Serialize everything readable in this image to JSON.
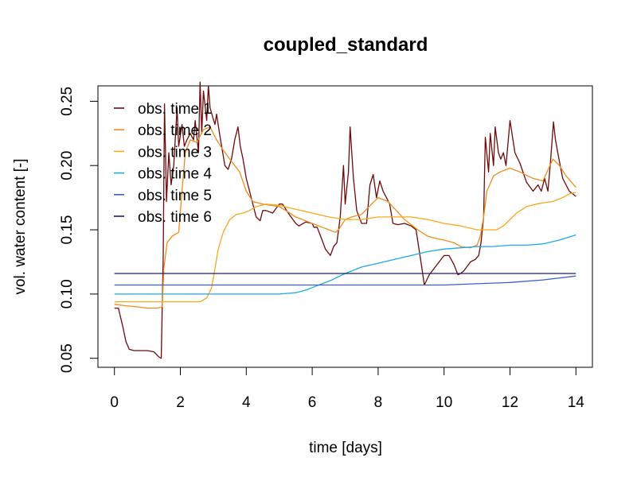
{
  "chart_data": {
    "type": "line",
    "title": "coupled_standard",
    "xlabel": "time [days]",
    "ylabel": "vol. water content [-]",
    "xlim": [
      -0.5,
      14.5
    ],
    "ylim": [
      0.043,
      0.262
    ],
    "x_ticks": [
      0,
      2,
      4,
      6,
      8,
      10,
      12,
      14
    ],
    "x_tick_labels": [
      "0",
      "2",
      "4",
      "6",
      "8",
      "10",
      "12",
      "14"
    ],
    "y_ticks": [
      0.05,
      0.1,
      0.15,
      0.2,
      0.25
    ],
    "y_tick_labels": [
      "0.05",
      "0.10",
      "0.15",
      "0.20",
      "0.25"
    ],
    "grid": false,
    "legend_position": "top-left",
    "series": [
      {
        "name": "obs. time  1",
        "color": "#6e0a0a",
        "x": [
          0,
          0.12,
          0.25,
          0.35,
          0.45,
          0.6,
          0.8,
          1.0,
          1.2,
          1.35,
          1.42,
          1.48,
          1.52,
          1.58,
          1.65,
          1.72,
          1.8,
          1.9,
          1.95,
          2.05,
          2.12,
          2.2,
          2.3,
          2.4,
          2.45,
          2.55,
          2.6,
          2.65,
          2.7,
          2.8,
          2.85,
          2.9,
          3.0,
          3.05,
          3.1,
          3.2,
          3.35,
          3.45,
          3.55,
          3.65,
          3.75,
          3.82,
          3.9,
          4.0,
          4.15,
          4.3,
          4.42,
          4.5,
          4.6,
          4.8,
          5.0,
          5.1,
          5.3,
          5.5,
          5.6,
          5.8,
          6.0,
          6.05,
          6.15,
          6.3,
          6.4,
          6.55,
          6.65,
          6.75,
          6.85,
          6.95,
          7.0,
          7.1,
          7.15,
          7.25,
          7.35,
          7.5,
          7.65,
          7.75,
          7.85,
          7.95,
          8.05,
          8.15,
          8.25,
          8.35,
          8.45,
          8.6,
          8.8,
          9.0,
          9.15,
          9.3,
          9.4,
          9.55,
          9.7,
          9.85,
          10.0,
          10.15,
          10.3,
          10.42,
          10.5,
          10.6,
          10.8,
          10.95,
          11.05,
          11.12,
          11.2,
          11.25,
          11.35,
          11.4,
          11.5,
          11.55,
          11.65,
          11.72,
          11.8,
          11.88,
          12.0,
          12.15,
          12.3,
          12.5,
          12.7,
          12.85,
          12.95,
          13.05,
          13.15,
          13.22,
          13.32,
          13.38,
          13.45,
          13.6,
          13.8,
          14.0
        ],
        "y": [
          0.089,
          0.089,
          0.075,
          0.063,
          0.057,
          0.056,
          0.056,
          0.056,
          0.055,
          0.051,
          0.05,
          0.13,
          0.248,
          0.172,
          0.21,
          0.185,
          0.2,
          0.245,
          0.215,
          0.232,
          0.215,
          0.22,
          0.225,
          0.22,
          0.235,
          0.21,
          0.265,
          0.225,
          0.258,
          0.235,
          0.262,
          0.245,
          0.236,
          0.232,
          0.24,
          0.223,
          0.2,
          0.197,
          0.205,
          0.22,
          0.23,
          0.215,
          0.205,
          0.19,
          0.175,
          0.16,
          0.157,
          0.165,
          0.165,
          0.163,
          0.17,
          0.17,
          0.162,
          0.155,
          0.153,
          0.156,
          0.155,
          0.152,
          0.152,
          0.142,
          0.135,
          0.13,
          0.137,
          0.14,
          0.16,
          0.2,
          0.17,
          0.195,
          0.23,
          0.19,
          0.165,
          0.155,
          0.155,
          0.185,
          0.193,
          0.175,
          0.188,
          0.18,
          0.175,
          0.17,
          0.155,
          0.154,
          0.155,
          0.153,
          0.15,
          0.125,
          0.107,
          0.115,
          0.12,
          0.125,
          0.13,
          0.13,
          0.123,
          0.115,
          0.116,
          0.118,
          0.125,
          0.127,
          0.13,
          0.14,
          0.16,
          0.222,
          0.195,
          0.225,
          0.2,
          0.23,
          0.21,
          0.205,
          0.21,
          0.2,
          0.235,
          0.21,
          0.202,
          0.187,
          0.18,
          0.185,
          0.18,
          0.19,
          0.18,
          0.2,
          0.234,
          0.22,
          0.21,
          0.19,
          0.18,
          0.176
        ]
      },
      {
        "name": "obs. time  2",
        "color": "#f08c1e",
        "x": [
          0,
          0.3,
          0.7,
          1.0,
          1.3,
          1.45,
          1.5,
          1.6,
          1.75,
          1.95,
          2.05,
          2.15,
          2.3,
          2.5,
          2.7,
          2.9,
          3.1,
          3.3,
          3.5,
          3.8,
          4.0,
          4.2,
          4.5,
          5.0,
          5.2,
          5.5,
          6.0,
          6.2,
          6.5,
          6.7,
          6.8,
          7.0,
          7.2,
          7.5,
          7.8,
          8.0,
          8.3,
          8.8,
          9.2,
          9.5,
          9.8,
          10.0,
          10.3,
          10.5,
          10.8,
          11.0,
          11.1,
          11.2,
          11.3,
          11.5,
          11.7,
          12.0,
          12.3,
          12.7,
          13.0,
          13.3,
          13.5,
          13.7,
          14.0
        ],
        "y": [
          0.092,
          0.091,
          0.09,
          0.089,
          0.089,
          0.09,
          0.12,
          0.14,
          0.145,
          0.148,
          0.18,
          0.21,
          0.22,
          0.218,
          0.228,
          0.23,
          0.22,
          0.212,
          0.205,
          0.195,
          0.18,
          0.172,
          0.17,
          0.168,
          0.165,
          0.16,
          0.155,
          0.153,
          0.15,
          0.148,
          0.15,
          0.158,
          0.16,
          0.162,
          0.17,
          0.175,
          0.172,
          0.158,
          0.15,
          0.145,
          0.143,
          0.142,
          0.14,
          0.137,
          0.136,
          0.138,
          0.145,
          0.16,
          0.18,
          0.192,
          0.195,
          0.198,
          0.195,
          0.19,
          0.188,
          0.205,
          0.2,
          0.192,
          0.183
        ]
      },
      {
        "name": "obs. time  3",
        "color": "#f7a81c",
        "x": [
          0,
          1.0,
          2.0,
          2.6,
          2.8,
          2.95,
          3.05,
          3.15,
          3.3,
          3.5,
          3.7,
          3.9,
          4.1,
          4.3,
          4.6,
          5.0,
          5.5,
          6.0,
          6.5,
          7.0,
          7.5,
          8.0,
          8.5,
          9.0,
          9.5,
          10.0,
          10.5,
          11.0,
          11.3,
          11.6,
          11.8,
          12.0,
          12.2,
          12.5,
          12.8,
          13.0,
          13.3,
          13.6,
          13.8,
          14.0
        ],
        "y": [
          0.094,
          0.094,
          0.094,
          0.094,
          0.097,
          0.105,
          0.12,
          0.135,
          0.148,
          0.158,
          0.162,
          0.163,
          0.165,
          0.168,
          0.17,
          0.169,
          0.166,
          0.163,
          0.16,
          0.158,
          0.158,
          0.16,
          0.16,
          0.16,
          0.158,
          0.155,
          0.153,
          0.15,
          0.15,
          0.15,
          0.153,
          0.158,
          0.163,
          0.168,
          0.17,
          0.171,
          0.172,
          0.175,
          0.178,
          0.179
        ]
      },
      {
        "name": "obs. time  4",
        "color": "#1eaae6",
        "x": [
          0,
          2.0,
          4.0,
          5.0,
          5.5,
          5.8,
          6.0,
          6.3,
          6.6,
          7.0,
          7.5,
          8.0,
          8.5,
          9.0,
          9.5,
          10.0,
          10.5,
          11.0,
          11.5,
          12.0,
          12.5,
          13.0,
          13.5,
          14.0
        ],
        "y": [
          0.1,
          0.1,
          0.1,
          0.1,
          0.101,
          0.103,
          0.105,
          0.108,
          0.111,
          0.116,
          0.121,
          0.124,
          0.127,
          0.13,
          0.133,
          0.135,
          0.136,
          0.137,
          0.137,
          0.138,
          0.138,
          0.139,
          0.142,
          0.146
        ]
      },
      {
        "name": "obs. time  5",
        "color": "#3b5fcf",
        "x": [
          0,
          2,
          4,
          6,
          8,
          9,
          10,
          11,
          12,
          13,
          14
        ],
        "y": [
          0.107,
          0.107,
          0.107,
          0.107,
          0.107,
          0.107,
          0.107,
          0.108,
          0.109,
          0.111,
          0.114
        ]
      },
      {
        "name": "obs. time  6",
        "color": "#1a1a80",
        "x": [
          0,
          14
        ],
        "y": [
          0.116,
          0.116
        ]
      }
    ]
  }
}
